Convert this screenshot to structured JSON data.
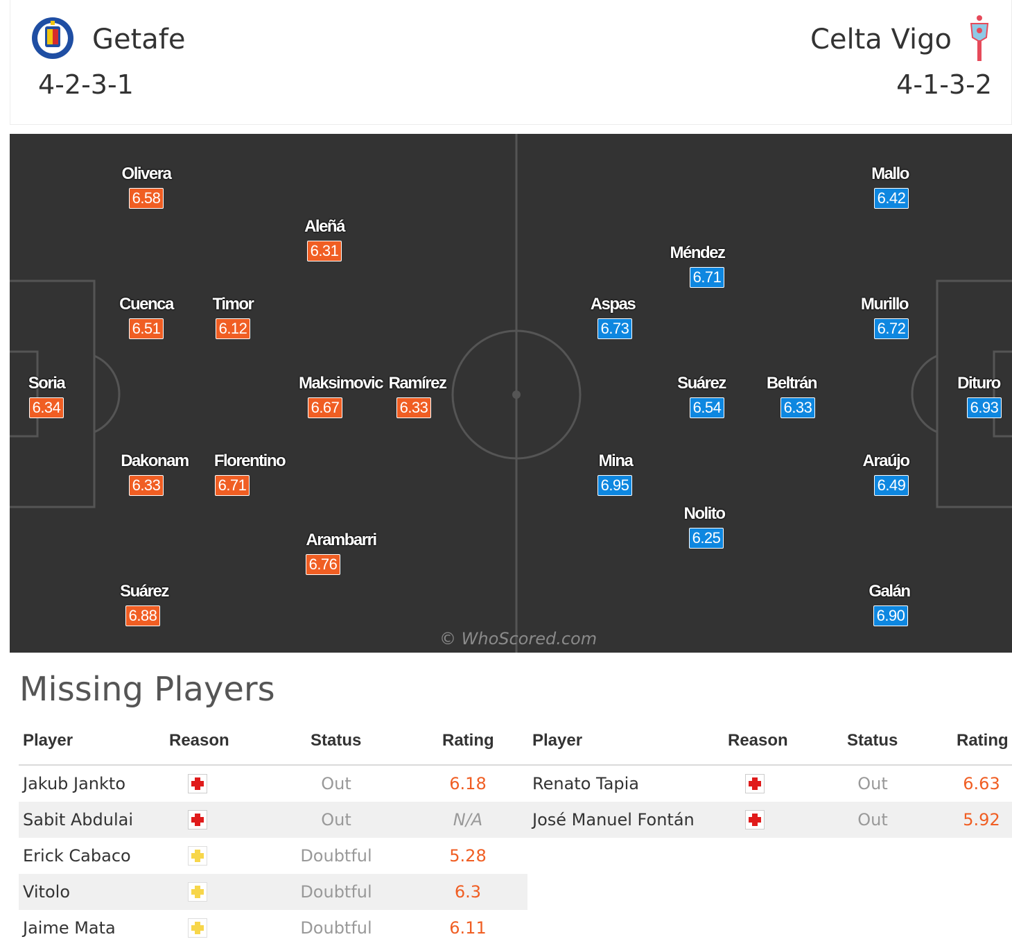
{
  "home": {
    "name": "Getafe",
    "formation": "4-2-3-1",
    "crest_icon": "getafe-crest-icon",
    "color": "#f05e23",
    "players": [
      {
        "name": "Olivera",
        "rating": "6.58"
      },
      {
        "name": "Aleñá",
        "rating": "6.31"
      },
      {
        "name": "Cuenca",
        "rating": "6.51"
      },
      {
        "name": "Timor",
        "rating": "6.12"
      },
      {
        "name": "Soria",
        "rating": "6.34"
      },
      {
        "name": "Maksimovic",
        "rating": "6.67"
      },
      {
        "name": "Ramírez",
        "rating": "6.33"
      },
      {
        "name": "Dakonam",
        "rating": "6.33"
      },
      {
        "name": "Florentino",
        "rating": "6.71"
      },
      {
        "name": "Arambarri",
        "rating": "6.76"
      },
      {
        "name": "Suárez",
        "rating": "6.88"
      }
    ]
  },
  "away": {
    "name": "Celta Vigo",
    "formation": "4-1-3-2",
    "crest_icon": "celta-crest-icon",
    "color": "#0e87e0",
    "players": [
      {
        "name": "Mallo",
        "rating": "6.42"
      },
      {
        "name": "Méndez",
        "rating": "6.71"
      },
      {
        "name": "Aspas",
        "rating": "6.73"
      },
      {
        "name": "Murillo",
        "rating": "6.72"
      },
      {
        "name": "Suárez",
        "rating": "6.54"
      },
      {
        "name": "Beltrán",
        "rating": "6.33"
      },
      {
        "name": "Dituro",
        "rating": "6.93"
      },
      {
        "name": "Mina",
        "rating": "6.95"
      },
      {
        "name": "Araújo",
        "rating": "6.49"
      },
      {
        "name": "Nolito",
        "rating": "6.25"
      },
      {
        "name": "Galán",
        "rating": "6.90"
      }
    ]
  },
  "pitch": {
    "background": "#333333",
    "watermark": "© WhoScored.com"
  },
  "missing": {
    "title": "Missing Players",
    "headers": {
      "player": "Player",
      "reason": "Reason",
      "status": "Status",
      "rating": "Rating"
    },
    "home_rows": [
      {
        "player": "Jakub Jankto",
        "reason_icon": "injury-icon",
        "status": "Out",
        "rating": "6.18"
      },
      {
        "player": "Sabit Abdulai",
        "reason_icon": "injury-icon",
        "status": "Out",
        "rating": "N/A"
      },
      {
        "player": "Erick Cabaco",
        "reason_icon": "doubtful-icon",
        "status": "Doubtful",
        "rating": "5.28"
      },
      {
        "player": "Vitolo",
        "reason_icon": "doubtful-icon",
        "status": "Doubtful",
        "rating": "6.3"
      },
      {
        "player": "Jaime Mata",
        "reason_icon": "doubtful-icon",
        "status": "Doubtful",
        "rating": "6.11"
      }
    ],
    "away_rows": [
      {
        "player": "Renato Tapia",
        "reason_icon": "injury-icon",
        "status": "Out",
        "rating": "6.63"
      },
      {
        "player": "José Manuel Fontán",
        "reason_icon": "injury-icon",
        "status": "Out",
        "rating": "5.92"
      }
    ]
  }
}
